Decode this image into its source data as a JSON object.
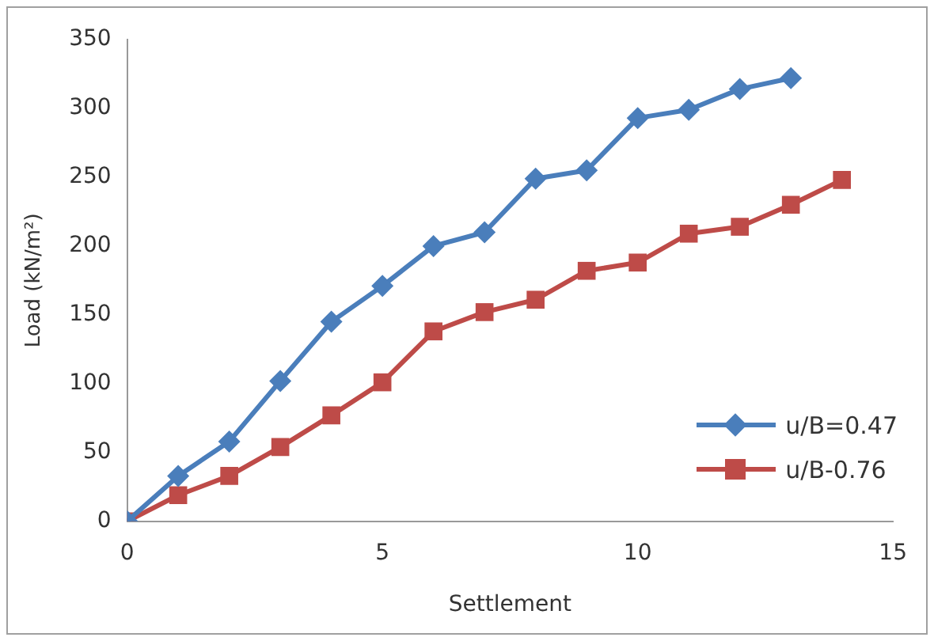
{
  "chart_data": {
    "type": "line",
    "xlabel": "Settlement",
    "ylabel": "Load (kN/m²)",
    "xlim": [
      0,
      15
    ],
    "xticks": [
      0,
      5,
      10,
      15
    ],
    "ylim": [
      0,
      350
    ],
    "yticks": [
      0,
      50,
      100,
      150,
      200,
      250,
      300,
      350
    ],
    "grid": false,
    "legend": "right",
    "line_style": "solid",
    "series": [
      {
        "name": "u/B=0.47",
        "color": "#4a7ebb",
        "marker": "diamond",
        "x": [
          0,
          1,
          2,
          3,
          4,
          5,
          6,
          7,
          8,
          9,
          10,
          11,
          12,
          13
        ],
        "values": [
          0,
          33,
          58,
          102,
          145,
          171,
          200,
          210,
          249,
          255,
          293,
          299,
          314,
          322
        ]
      },
      {
        "name": "u/B-0.76",
        "color": "#be4b48",
        "marker": "square",
        "x": [
          0,
          1,
          2,
          3,
          4,
          5,
          6,
          7,
          8,
          9,
          10,
          11,
          12,
          13,
          14
        ],
        "values": [
          0,
          19,
          33,
          54,
          77,
          101,
          138,
          152,
          161,
          182,
          188,
          209,
          214,
          230,
          248
        ]
      }
    ]
  }
}
